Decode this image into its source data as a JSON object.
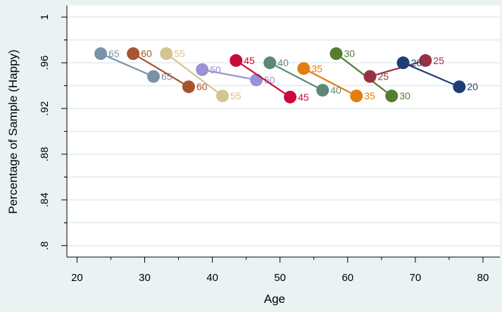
{
  "chart_data": {
    "type": "line",
    "title": "",
    "xlabel": "Age",
    "ylabel": "Percentage of Sample (Happy)",
    "xlim": [
      18.5,
      82.5
    ],
    "ylim": [
      0.79,
      1.01
    ],
    "xticks": [
      20,
      30,
      40,
      50,
      60,
      70,
      80
    ],
    "xticklabels": [
      "20",
      "30",
      "40",
      "50",
      "60",
      "70",
      "80"
    ],
    "yticks": [
      0.8,
      0.84,
      0.88,
      0.92,
      0.96,
      1.0
    ],
    "yticklabels": [
      ".8",
      ".84",
      ".88",
      ".92",
      ".96",
      "1"
    ],
    "minor_y_gridlines": true,
    "grid": true,
    "legend": "none",
    "series": [
      {
        "label": "65",
        "color": "#7992a8",
        "points": [
          [
            23.5,
            0.968
          ],
          [
            31.3,
            0.948
          ]
        ]
      },
      {
        "label": "60",
        "color": "#a8542e",
        "points": [
          [
            28.3,
            0.968
          ],
          [
            36.5,
            0.939
          ]
        ]
      },
      {
        "label": "55",
        "color": "#d3c58e",
        "points": [
          [
            33.2,
            0.968
          ],
          [
            41.5,
            0.931
          ]
        ]
      },
      {
        "label": "50",
        "color": "#9a91d6",
        "points": [
          [
            38.5,
            0.954
          ],
          [
            46.5,
            0.945
          ]
        ]
      },
      {
        "label": "45",
        "color": "#c70b3a",
        "points": [
          [
            43.5,
            0.962
          ],
          [
            51.5,
            0.93
          ]
        ]
      },
      {
        "label": "40",
        "color": "#5e8779",
        "points": [
          [
            48.5,
            0.96
          ],
          [
            56.3,
            0.936
          ]
        ]
      },
      {
        "label": "35",
        "color": "#e37d10",
        "points": [
          [
            53.5,
            0.955
          ],
          [
            61.3,
            0.931
          ]
        ]
      },
      {
        "label": "30",
        "color": "#567d2e",
        "points": [
          [
            58.3,
            0.968
          ],
          [
            66.5,
            0.931
          ]
        ]
      },
      {
        "label": "25",
        "color": "#993145",
        "points": [
          [
            63.3,
            0.948
          ],
          [
            71.5,
            0.962
          ]
        ]
      },
      {
        "label": "20",
        "color": "#1e3d76",
        "points": [
          [
            68.2,
            0.96
          ],
          [
            76.5,
            0.939
          ]
        ]
      }
    ]
  }
}
